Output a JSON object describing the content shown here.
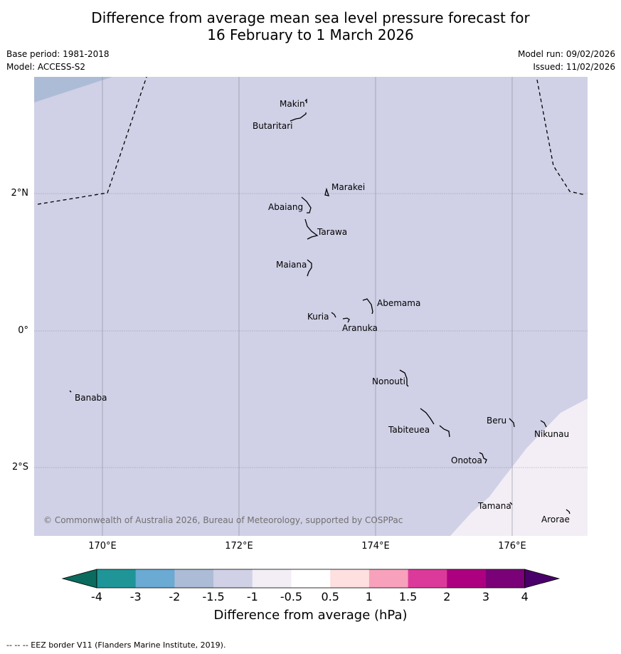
{
  "title": {
    "line1": "Difference from average mean sea level pressure forecast for",
    "line2": "16 February to 1 March 2026"
  },
  "meta": {
    "base_period": "Base period: 1981-2018",
    "model": "Model: ACCESS-S2",
    "model_run": "Model run: 09/02/2026",
    "issued": "Issued: 11/02/2026"
  },
  "map": {
    "lon_range": [
      169,
      177.1
    ],
    "lat_range": [
      -3.0,
      3.7
    ],
    "lon_ticks": [
      "170°E",
      "172°E",
      "174°E",
      "176°E"
    ],
    "lat_ticks": [
      "2°N",
      "0°",
      "2°S"
    ],
    "background_category": "-1.5 to -1",
    "colors": {
      "minus_2_to_minus_1_5": "#adbcd6",
      "minus_1_5_to_minus_1": "#d0d0e6",
      "minus_1_to_minus_0_5": "#f3eef5",
      "grid": "#8a8a9a"
    },
    "places": [
      {
        "name": "Makin"
      },
      {
        "name": "Butaritari"
      },
      {
        "name": "Marakei"
      },
      {
        "name": "Abaiang"
      },
      {
        "name": "Tarawa"
      },
      {
        "name": "Maiana"
      },
      {
        "name": "Abemama"
      },
      {
        "name": "Kuria"
      },
      {
        "name": "Aranuka"
      },
      {
        "name": "Nonouti"
      },
      {
        "name": "Banaba"
      },
      {
        "name": "Beru"
      },
      {
        "name": "Tabiteuea"
      },
      {
        "name": "Nikunau"
      },
      {
        "name": "Onotoa"
      },
      {
        "name": "Tamana"
      },
      {
        "name": "Arorae"
      }
    ],
    "copyright": "© Commonwealth of Australia 2026, Bureau of Meteorology, supported by COSPPac"
  },
  "colorbar": {
    "label": "Difference from average (hPa)",
    "ticks": [
      "-4",
      "-3",
      "-2",
      "-1.5",
      "-1",
      "-0.5",
      "0.5",
      "1",
      "1.5",
      "2",
      "3",
      "4"
    ],
    "colors": [
      "#0a6b5e",
      "#1f9598",
      "#6aaad3",
      "#adbcd6",
      "#d0d0e6",
      "#f3eef5",
      "#ffffff",
      "#fde0df",
      "#f7a1bd",
      "#dc3a9a",
      "#ad0080",
      "#7a0177",
      "#4a006a"
    ]
  },
  "footer": "-- -- -- EEZ border V11 (Flanders Marine Institute, 2019)."
}
